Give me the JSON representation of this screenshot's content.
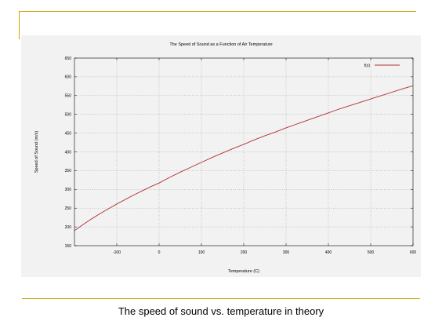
{
  "caption": "The speed of sound vs. temperature in theory",
  "chart_data": {
    "type": "line",
    "title": "The Speed of Sound as a Function of Air Temperature",
    "xlabel": "Temperature (C)",
    "ylabel": "Speed of Sound (m/s)",
    "xlim": [
      -200,
      600
    ],
    "ylim": [
      150,
      650
    ],
    "xticks": [
      -100,
      0,
      100,
      200,
      300,
      400,
      500,
      600
    ],
    "yticks": [
      150,
      200,
      250,
      300,
      350,
      400,
      450,
      500,
      550,
      600,
      650
    ],
    "grid": true,
    "legend_position": "top-right",
    "series": [
      {
        "name": "f(x)",
        "color": "#b03030",
        "x": [
          -200,
          -180,
          -160,
          -140,
          -120,
          -100,
          -80,
          -60,
          -40,
          -20,
          0,
          25,
          50,
          75,
          100,
          125,
          150,
          175,
          200,
          225,
          250,
          275,
          300,
          325,
          350,
          375,
          400,
          425,
          450,
          475,
          500,
          525,
          550,
          575,
          600
        ],
        "y": [
          190,
          206,
          221,
          235,
          248,
          261,
          273,
          285,
          296,
          307,
          317,
          332,
          346,
          359,
          372,
          385,
          397,
          409,
          420,
          432,
          443,
          453,
          464,
          474,
          484,
          494,
          504,
          514,
          523,
          532,
          541,
          550,
          559,
          568,
          576
        ]
      }
    ]
  }
}
